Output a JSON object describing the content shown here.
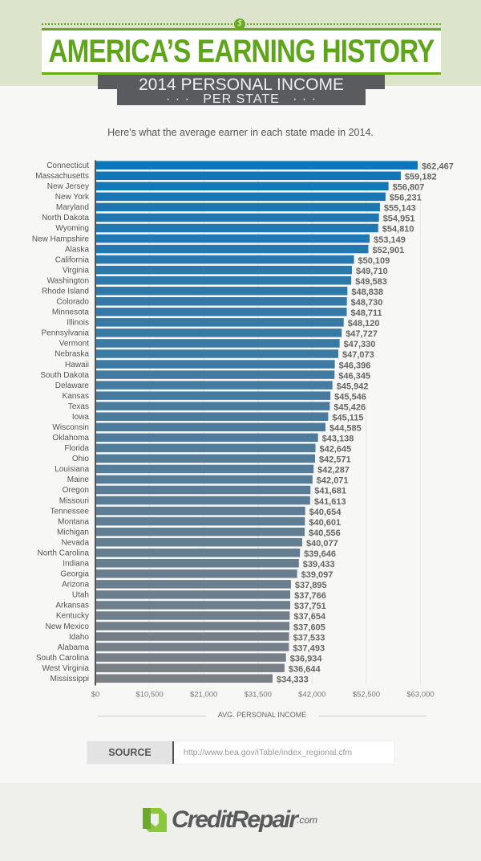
{
  "header": {
    "title": "AMERICA’S EARNING HISTORY",
    "subtitle_line1": "2014 PERSONAL INCOME",
    "subtitle_line2": "· · ·   PER STATE   · · ·",
    "coin_symbol": "$"
  },
  "intro": "Here's what the average earner in each state made in 2014.",
  "source": {
    "label": "SOURCE",
    "url": "http://www.bea.gov/iTable/index_regional.cfm"
  },
  "footer": {
    "logo_text": "CreditRepair",
    "logo_suffix": ".com"
  },
  "colors": {
    "green": "#5ea51b",
    "bar_top": "#0b76ba",
    "bar_bottom": "#7b7f86"
  },
  "chart_data": {
    "type": "bar",
    "orientation": "horizontal",
    "xlabel": "AVG. PERSONAL INCOME",
    "xlim": [
      0,
      63000
    ],
    "ticks": [
      "$0",
      "$10,500",
      "$21,000",
      "$31,500",
      "$42,000",
      "$52,500",
      "$63,000"
    ],
    "tick_values": [
      0,
      10500,
      21000,
      31500,
      42000,
      52500,
      63000
    ],
    "categories": [
      "Connecticut",
      "Massachusetts",
      "New Jersey",
      "New York",
      "Maryland",
      "North Dakota",
      "Wyoming",
      "New Hampshire",
      "Alaska",
      "California",
      "Virginia",
      "Washington",
      "Rhode Island",
      "Colorado",
      "Minnesota",
      "Illinois",
      "Pennsylvania",
      "Vermont",
      "Nebraska",
      "Hawaii",
      "South Dakota",
      "Delaware",
      "Kansas",
      "Texas",
      "Iowa",
      "Wisconsin",
      "Oklahoma",
      "Florida",
      "Ohio",
      "Louisiana",
      "Maine",
      "Oregon",
      "Missouri",
      "Tennessee",
      "Montana",
      "Michigan",
      "Nevada",
      "North Carolina",
      "Indiana",
      "Georgia",
      "Arizona",
      "Utah",
      "Arkansas",
      "Kentucky",
      "New Mexico",
      "Idaho",
      "Alabama",
      "South Carolina",
      "West Virginia",
      "Mississippi"
    ],
    "values": [
      62467,
      59182,
      56807,
      56231,
      55143,
      54951,
      54810,
      53149,
      52901,
      50109,
      49710,
      49583,
      48838,
      48730,
      48711,
      48120,
      47727,
      47330,
      47073,
      46396,
      46345,
      45942,
      45546,
      45426,
      45115,
      44585,
      43138,
      42645,
      42571,
      42287,
      42071,
      41681,
      41613,
      40654,
      40601,
      40556,
      40077,
      39646,
      39433,
      39097,
      37895,
      37766,
      37751,
      37654,
      37605,
      37533,
      37493,
      36934,
      36644,
      34333
    ],
    "labels": [
      "$62,467",
      "$59,182",
      "$56,807",
      "$56,231",
      "$55,143",
      "$54,951",
      "$54,810",
      "$53,149",
      "$52,901",
      "$50,109",
      "$49,710",
      "$49,583",
      "$48,838",
      "$48,730",
      "$48,711",
      "$48,120",
      "$47,727",
      "$47,330",
      "$47,073",
      "$46,396",
      "$46,345",
      "$45,942",
      "$45,546",
      "$45,426",
      "$45,115",
      "$44,585",
      "$43,138",
      "$42,645",
      "$42,571",
      "$42,287",
      "$42,071",
      "$41,681",
      "$41,613",
      "$40,654",
      "$40,601",
      "$40,556",
      "$40,077",
      "$39,646",
      "$39,433",
      "$39,097",
      "$37,895",
      "$37,766",
      "$37,751",
      "$37,654",
      "$37,605",
      "$37,533",
      "$37,493",
      "$36,934",
      "$36,644",
      "$34,333"
    ]
  }
}
